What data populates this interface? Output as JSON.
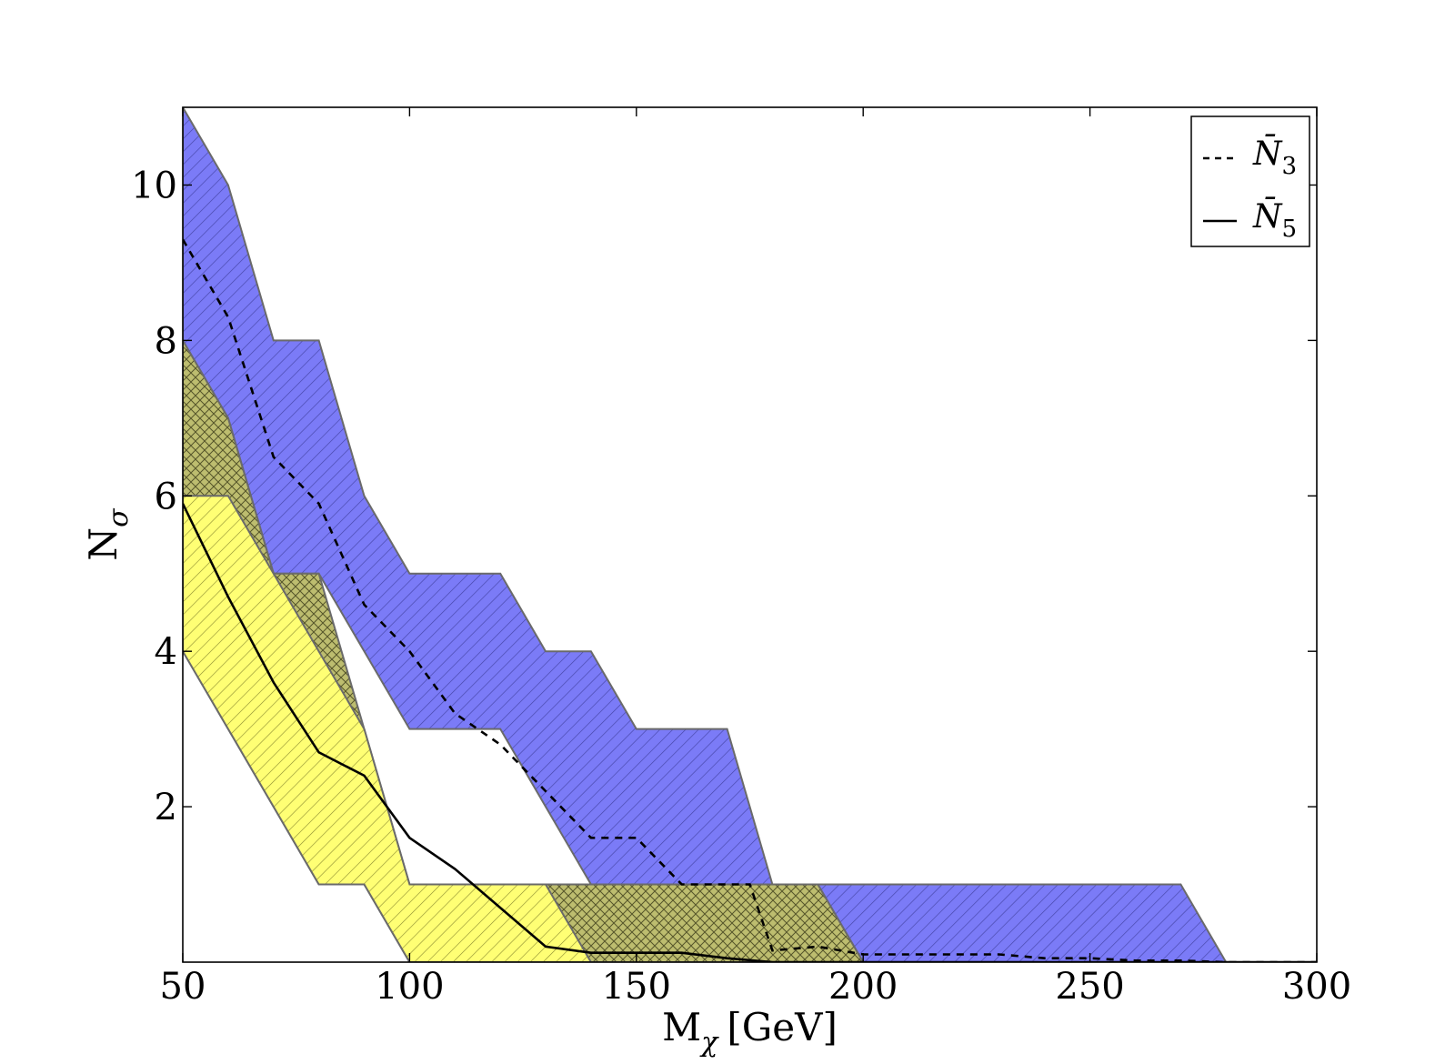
{
  "chart_data": {
    "type": "area",
    "title": "",
    "xlabel": "M",
    "xlabel_sub": "χ",
    "xlabel_unit": "[GeV]",
    "ylabel": "N",
    "ylabel_sub": "σ",
    "xlim": [
      50,
      300
    ],
    "ylim": [
      0,
      11
    ],
    "xticks": [
      50,
      100,
      150,
      200,
      250,
      300
    ],
    "yticks": [
      2,
      4,
      6,
      8,
      10
    ],
    "grid": false,
    "legend_position": "top-right",
    "bands": [
      {
        "id": "band-n3",
        "color": "#7b7bf7",
        "hatch": "diagonal",
        "upper": {
          "x": [
            50,
            60,
            70,
            80,
            90,
            100,
            120,
            130,
            140,
            150,
            170,
            180,
            270,
            280,
            300
          ],
          "y": [
            11,
            10,
            8,
            8,
            6,
            5,
            5,
            4,
            4,
            3,
            3,
            1,
            1,
            0,
            0
          ]
        },
        "lower": {
          "x": [
            50,
            60,
            70,
            80,
            100,
            120,
            140,
            180,
            190,
            200,
            280
          ],
          "y": [
            8,
            7,
            5,
            5,
            3,
            3,
            1,
            1,
            1,
            0,
            0
          ]
        }
      },
      {
        "id": "band-n5",
        "color": "#ffff74",
        "hatch": "diagonal",
        "upper": {
          "x": [
            50,
            60,
            70,
            80,
            90,
            100,
            120,
            140,
            180,
            190,
            200
          ],
          "y": [
            8,
            7,
            5,
            5,
            3,
            1,
            1,
            1,
            1,
            1,
            0
          ]
        },
        "lower": {
          "x": [
            50,
            60,
            70,
            80,
            90,
            100
          ],
          "y": [
            4,
            3,
            2,
            1,
            1,
            0
          ]
        }
      },
      {
        "id": "band-n5-inner",
        "color": "#ffff74",
        "hatch": "diagonal",
        "upper": {
          "x": [
            50,
            60,
            70,
            80,
            90,
            100,
            110,
            120,
            130,
            140
          ],
          "y": [
            6,
            6,
            5,
            4,
            3,
            1,
            1,
            1,
            1,
            0
          ]
        },
        "lower": {
          "x": [
            50,
            60,
            70,
            80,
            90,
            100
          ],
          "y": [
            4,
            3,
            2,
            1,
            1,
            0
          ]
        }
      }
    ],
    "series": [
      {
        "name": "N̄3",
        "legend_symbol": "N̄",
        "legend_sub": "3",
        "style": "dashed",
        "x": [
          50,
          60,
          70,
          80,
          90,
          100,
          110,
          120,
          130,
          140,
          150,
          160,
          170,
          175,
          180,
          190,
          200,
          210,
          220,
          230,
          240,
          250,
          260,
          270,
          280,
          300
        ],
        "y": [
          9.3,
          8.3,
          6.5,
          5.9,
          4.6,
          4.0,
          3.2,
          2.8,
          2.2,
          1.6,
          1.6,
          1.0,
          1.0,
          1.0,
          0.15,
          0.2,
          0.1,
          0.1,
          0.1,
          0.1,
          0.05,
          0.05,
          0.02,
          0.02,
          0.0,
          0.0
        ]
      },
      {
        "name": "N̄5",
        "legend_symbol": "N̄",
        "legend_sub": "5",
        "style": "solid",
        "x": [
          50,
          60,
          70,
          80,
          90,
          100,
          110,
          120,
          130,
          140,
          150,
          160,
          170,
          180,
          200,
          300
        ],
        "y": [
          5.9,
          4.7,
          3.6,
          2.7,
          2.4,
          1.6,
          1.2,
          0.7,
          0.2,
          0.12,
          0.12,
          0.12,
          0.05,
          0.0,
          0.0,
          0.0
        ]
      }
    ]
  }
}
